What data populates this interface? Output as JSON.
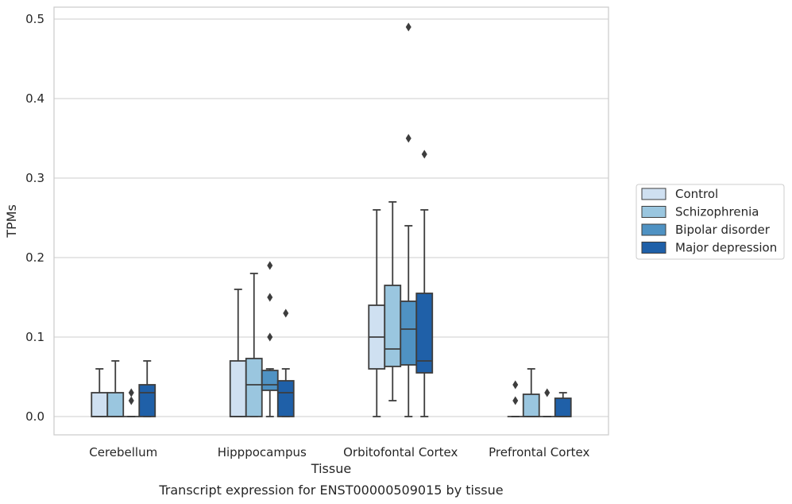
{
  "chart_data": {
    "type": "box",
    "xlabel": "Tissue",
    "ylabel": "TPMs",
    "caption": "Transcript expression for ENST00000509015 by tissue",
    "ylim": [
      -0.024,
      0.515
    ],
    "yticks": [
      0.0,
      0.1,
      0.2,
      0.3,
      0.4,
      0.5
    ],
    "ytick_labels": [
      "0.0",
      "0.1",
      "0.2",
      "0.3",
      "0.4",
      "0.5"
    ],
    "grid": "horizontal",
    "legend_placement": "right, outside plot",
    "categories": [
      "Cerebellum",
      "Hipppocampus",
      "Orbitofontal Cortex",
      "Prefrontal Cortex"
    ],
    "series": [
      {
        "name": "Control",
        "color": "#cfe0f1",
        "boxes": [
          {
            "whislo": 0.0,
            "q1": 0.0,
            "med": 0.0,
            "q3": 0.03,
            "whishi": 0.06,
            "fliers": []
          },
          {
            "whislo": 0.0,
            "q1": 0.0,
            "med": 0.0,
            "q3": 0.07,
            "whishi": 0.16,
            "fliers": []
          },
          {
            "whislo": 0.0,
            "q1": 0.06,
            "med": 0.1,
            "q3": 0.14,
            "whishi": 0.26,
            "fliers": []
          },
          {
            "whislo": 0.0,
            "q1": 0.0,
            "med": 0.0,
            "q3": 0.0,
            "whishi": 0.0,
            "fliers": [
              0.02,
              0.04
            ]
          }
        ]
      },
      {
        "name": "Schizophrenia",
        "color": "#9ac6df",
        "boxes": [
          {
            "whislo": 0.0,
            "q1": 0.0,
            "med": 0.0,
            "q3": 0.03,
            "whishi": 0.07,
            "fliers": []
          },
          {
            "whislo": 0.0,
            "q1": 0.0,
            "med": 0.04,
            "q3": 0.073,
            "whishi": 0.18,
            "fliers": []
          },
          {
            "whislo": 0.02,
            "q1": 0.063,
            "med": 0.085,
            "q3": 0.165,
            "whishi": 0.27,
            "fliers": []
          },
          {
            "whislo": 0.0,
            "q1": 0.0,
            "med": 0.0,
            "q3": 0.028,
            "whishi": 0.06,
            "fliers": []
          }
        ]
      },
      {
        "name": "Bipolar disorder",
        "color": "#4f92c3",
        "boxes": [
          {
            "whislo": 0.0,
            "q1": 0.0,
            "med": 0.0,
            "q3": 0.0,
            "whishi": 0.0,
            "fliers": [
              0.02,
              0.03
            ]
          },
          {
            "whislo": 0.0,
            "q1": 0.033,
            "med": 0.04,
            "q3": 0.058,
            "whishi": 0.06,
            "fliers": [
              0.1,
              0.15,
              0.19
            ]
          },
          {
            "whislo": 0.0,
            "q1": 0.065,
            "med": 0.11,
            "q3": 0.145,
            "whishi": 0.24,
            "fliers": [
              0.35,
              0.49
            ]
          },
          {
            "whislo": 0.0,
            "q1": 0.0,
            "med": 0.0,
            "q3": 0.0,
            "whishi": 0.0,
            "fliers": [
              0.03
            ]
          }
        ]
      },
      {
        "name": "Major depression",
        "color": "#1f60a8",
        "boxes": [
          {
            "whislo": 0.0,
            "q1": 0.0,
            "med": 0.03,
            "q3": 0.04,
            "whishi": 0.07,
            "fliers": []
          },
          {
            "whislo": 0.0,
            "q1": 0.0,
            "med": 0.03,
            "q3": 0.045,
            "whishi": 0.06,
            "fliers": [
              0.13
            ]
          },
          {
            "whislo": 0.0,
            "q1": 0.055,
            "med": 0.07,
            "q3": 0.155,
            "whishi": 0.26,
            "fliers": [
              0.33
            ]
          },
          {
            "whislo": 0.0,
            "q1": 0.0,
            "med": 0.0,
            "q3": 0.023,
            "whishi": 0.03,
            "fliers": []
          }
        ]
      }
    ]
  }
}
